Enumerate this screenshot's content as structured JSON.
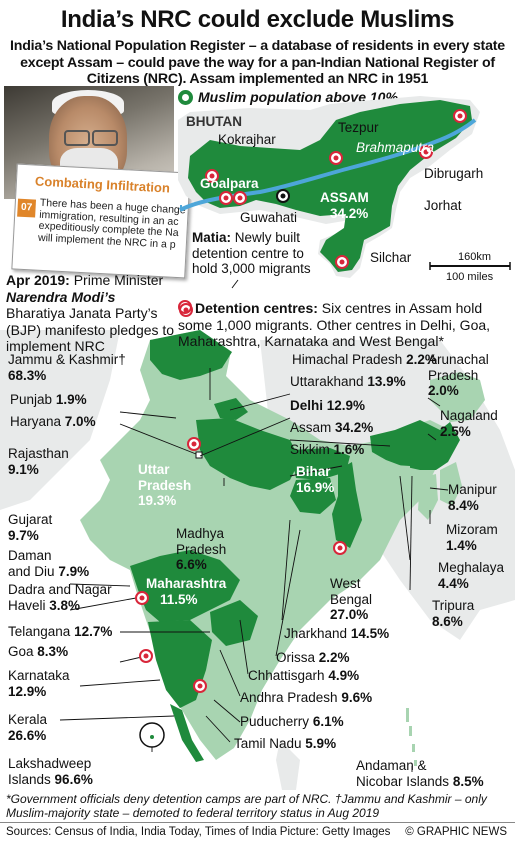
{
  "title": "India’s NRC could exclude Muslims",
  "subtitle": "India’s National Population Register – a database of residents in every state except Assam – could pave the way for a pan-Indian National Register of Citizens (NRC). Assam implemented an NRC in 1951",
  "legend": {
    "label": "Muslim population above 10%",
    "color": "#1f8a3c"
  },
  "colors": {
    "sea": "#ffffff",
    "land_neighbor": "#e8eaea",
    "state_light": "#a8d4b1",
    "state_dark": "#1f8a3c",
    "river": "#4da6d9",
    "detention": "#d8263a"
  },
  "photo": {
    "label": "Narendra Modi photo"
  },
  "document": {
    "title": "Combating Infiltration",
    "number": "07",
    "body": "There has been a huge change\nimmigration, resulting in an ac\nexpeditiously complete the Na\nwill implement the NRC in a p"
  },
  "modi_caption": {
    "date": "Apr 2019:",
    "text1": " Prime Minister",
    "name": "Narendra Modi’s",
    "text2": "Bharatiya Janata Party’s (BJP) manifesto pledges to implement NRC"
  },
  "assam_inset": {
    "bhutan": "BHUTAN",
    "river": "Brahmaputra",
    "assam_label": "ASSAM",
    "assam_value": "34.2%",
    "places": [
      "Kokrajhar",
      "Tezpur",
      "Goalpara",
      "Guwahati",
      "Dibrugarh",
      "Jorhat",
      "Silchar"
    ],
    "matia_name": "Matia:",
    "matia_text": " Newly built detention centre to hold 3,000 migrants",
    "scale_km": "160km",
    "scale_miles": "100 miles"
  },
  "detention_caption": {
    "head": "Detention centres:",
    "text": " Six centres in Assam hold some 1,000 migrants. Other centres in Delhi, Goa, Maharashtra, Karnataka and West Bengal*"
  },
  "states": [
    {
      "name": "Jammu & Kashmir†",
      "value": "68.3%"
    },
    {
      "name": "Himachal Pradesh",
      "value": "2.2%"
    },
    {
      "name": "Arunachal Pradesh",
      "value": "2.0%"
    },
    {
      "name": "Punjab",
      "value": "1.9%"
    },
    {
      "name": "Uttarakhand",
      "value": "13.9%"
    },
    {
      "name": "Haryana",
      "value": "7.0%"
    },
    {
      "name": "Delhi",
      "value": "12.9%"
    },
    {
      "name": "Nagaland",
      "value": "2.5%"
    },
    {
      "name": "Assam",
      "value": "34.2%"
    },
    {
      "name": "Rajasthan",
      "value": "9.1%"
    },
    {
      "name": "Sikkim",
      "value": "1.6%"
    },
    {
      "name": "Uttar Pradesh",
      "value": "19.3%"
    },
    {
      "name": "Bihar",
      "value": "16.9%"
    },
    {
      "name": "Manipur",
      "value": "8.4%"
    },
    {
      "name": "Gujarat",
      "value": "9.7%"
    },
    {
      "name": "Mizoram",
      "value": "1.4%"
    },
    {
      "name": "Madhya Pradesh",
      "value": "6.6%"
    },
    {
      "name": "Daman and Diu",
      "value": "7.9%"
    },
    {
      "name": "Meghalaya",
      "value": "4.4%"
    },
    {
      "name": "Dadra and Nagar Haveli",
      "value": "3.8%"
    },
    {
      "name": "Maharashtra",
      "value": "11.5%"
    },
    {
      "name": "West Bengal",
      "value": "27.0%"
    },
    {
      "name": "Tripura",
      "value": "8.6%"
    },
    {
      "name": "Telangana",
      "value": "12.7%"
    },
    {
      "name": "Jharkhand",
      "value": "14.5%"
    },
    {
      "name": "Goa",
      "value": "8.3%"
    },
    {
      "name": "Orissa",
      "value": "2.2%"
    },
    {
      "name": "Chhattisgarh",
      "value": "4.9%"
    },
    {
      "name": "Karnataka",
      "value": "12.9%"
    },
    {
      "name": "Andhra Pradesh",
      "value": "9.6%"
    },
    {
      "name": "Kerala",
      "value": "26.6%"
    },
    {
      "name": "Puducherry",
      "value": "6.1%"
    },
    {
      "name": "Tamil Nadu",
      "value": "5.9%"
    },
    {
      "name": "Lakshadweep Islands",
      "value": "96.6%"
    },
    {
      "name": "Andaman & Nicobar Islands",
      "value": "8.5%"
    }
  ],
  "footnote": "*Government officials deny detention camps are part of NRC. †Jammu and Kashmir – only Muslim-majority state – demoted to federal territory status in Aug 2019",
  "sources": "Sources: Census of India, India Today, Times of India   Picture: Getty Images",
  "credit": "© GRAPHIC NEWS"
}
